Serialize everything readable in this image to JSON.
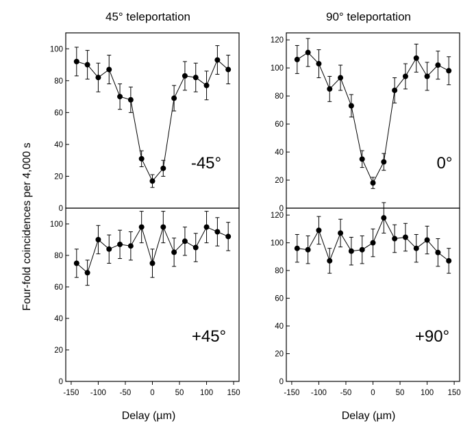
{
  "figure": {
    "ylabel": "Four-fold coincidences per 4,000 s",
    "xlabel": "Delay (µm)"
  },
  "chart_data": [
    {
      "type": "line",
      "column_title": "45° teleportation",
      "label": "-45°",
      "xlabel": "Delay (µm)",
      "ylabel": "Four-fold coincidences per 4,000 s",
      "xlim": [
        -160,
        160
      ],
      "ylim": [
        0,
        110
      ],
      "yticks": [
        0,
        20,
        40,
        60,
        80,
        100
      ],
      "x": [
        -140,
        -120,
        -100,
        -80,
        -60,
        -40,
        -20,
        0,
        20,
        40,
        60,
        80,
        100,
        120,
        140
      ],
      "y": [
        92,
        90,
        82,
        87,
        70,
        68,
        31,
        17,
        25,
        69,
        83,
        82,
        77,
        93,
        87
      ],
      "yerr": [
        9,
        9,
        9,
        9,
        8,
        8,
        5,
        4,
        5,
        8,
        9,
        9,
        9,
        9,
        9
      ]
    },
    {
      "type": "line",
      "column_title": "",
      "label": "+45°",
      "xlabel": "Delay (µm)",
      "ylabel": "Four-fold coincidences per 4,000 s",
      "xlim": [
        -160,
        160
      ],
      "ylim": [
        0,
        110
      ],
      "yticks": [
        0,
        20,
        40,
        60,
        80,
        100
      ],
      "xticks": [
        -150,
        -100,
        -50,
        0,
        50,
        100,
        150
      ],
      "x": [
        -140,
        -120,
        -100,
        -80,
        -60,
        -40,
        -20,
        0,
        20,
        40,
        60,
        80,
        100,
        120,
        140
      ],
      "y": [
        75,
        69,
        90,
        84,
        87,
        86,
        98,
        75,
        98,
        82,
        89,
        85,
        98,
        95,
        92
      ],
      "yerr": [
        9,
        8,
        9,
        9,
        9,
        9,
        10,
        9,
        10,
        9,
        9,
        9,
        10,
        9,
        9
      ]
    },
    {
      "type": "line",
      "column_title": "90° teleportation",
      "label": "0°",
      "xlabel": "Delay (µm)",
      "ylabel": "Four-fold coincidences per 4,000 s",
      "xlim": [
        -160,
        160
      ],
      "ylim": [
        0,
        125
      ],
      "yticks": [
        0,
        20,
        40,
        60,
        80,
        100,
        120
      ],
      "x": [
        -140,
        -120,
        -100,
        -80,
        -60,
        -40,
        -20,
        0,
        20,
        40,
        60,
        80,
        100,
        120,
        140
      ],
      "y": [
        106,
        111,
        103,
        85,
        93,
        73,
        35,
        18,
        33,
        84,
        94,
        107,
        94,
        102,
        98
      ],
      "yerr": [
        10,
        10,
        10,
        9,
        9,
        8,
        6,
        4,
        6,
        9,
        9,
        10,
        10,
        10,
        10
      ]
    },
    {
      "type": "line",
      "column_title": "",
      "label": "+90°",
      "xlabel": "Delay (µm)",
      "ylabel": "Four-fold coincidences per 4,000 s",
      "xlim": [
        -160,
        160
      ],
      "ylim": [
        0,
        125
      ],
      "yticks": [
        0,
        20,
        40,
        60,
        80,
        100,
        120
      ],
      "xticks": [
        -150,
        -100,
        -50,
        0,
        50,
        100,
        150
      ],
      "x": [
        -140,
        -120,
        -100,
        -80,
        -60,
        -40,
        -20,
        0,
        20,
        40,
        60,
        80,
        100,
        120,
        140
      ],
      "y": [
        96,
        95,
        109,
        87,
        107,
        94,
        95,
        100,
        118,
        103,
        104,
        96,
        102,
        93,
        87
      ],
      "yerr": [
        10,
        10,
        10,
        9,
        10,
        10,
        10,
        10,
        11,
        10,
        10,
        10,
        10,
        10,
        9
      ]
    }
  ]
}
